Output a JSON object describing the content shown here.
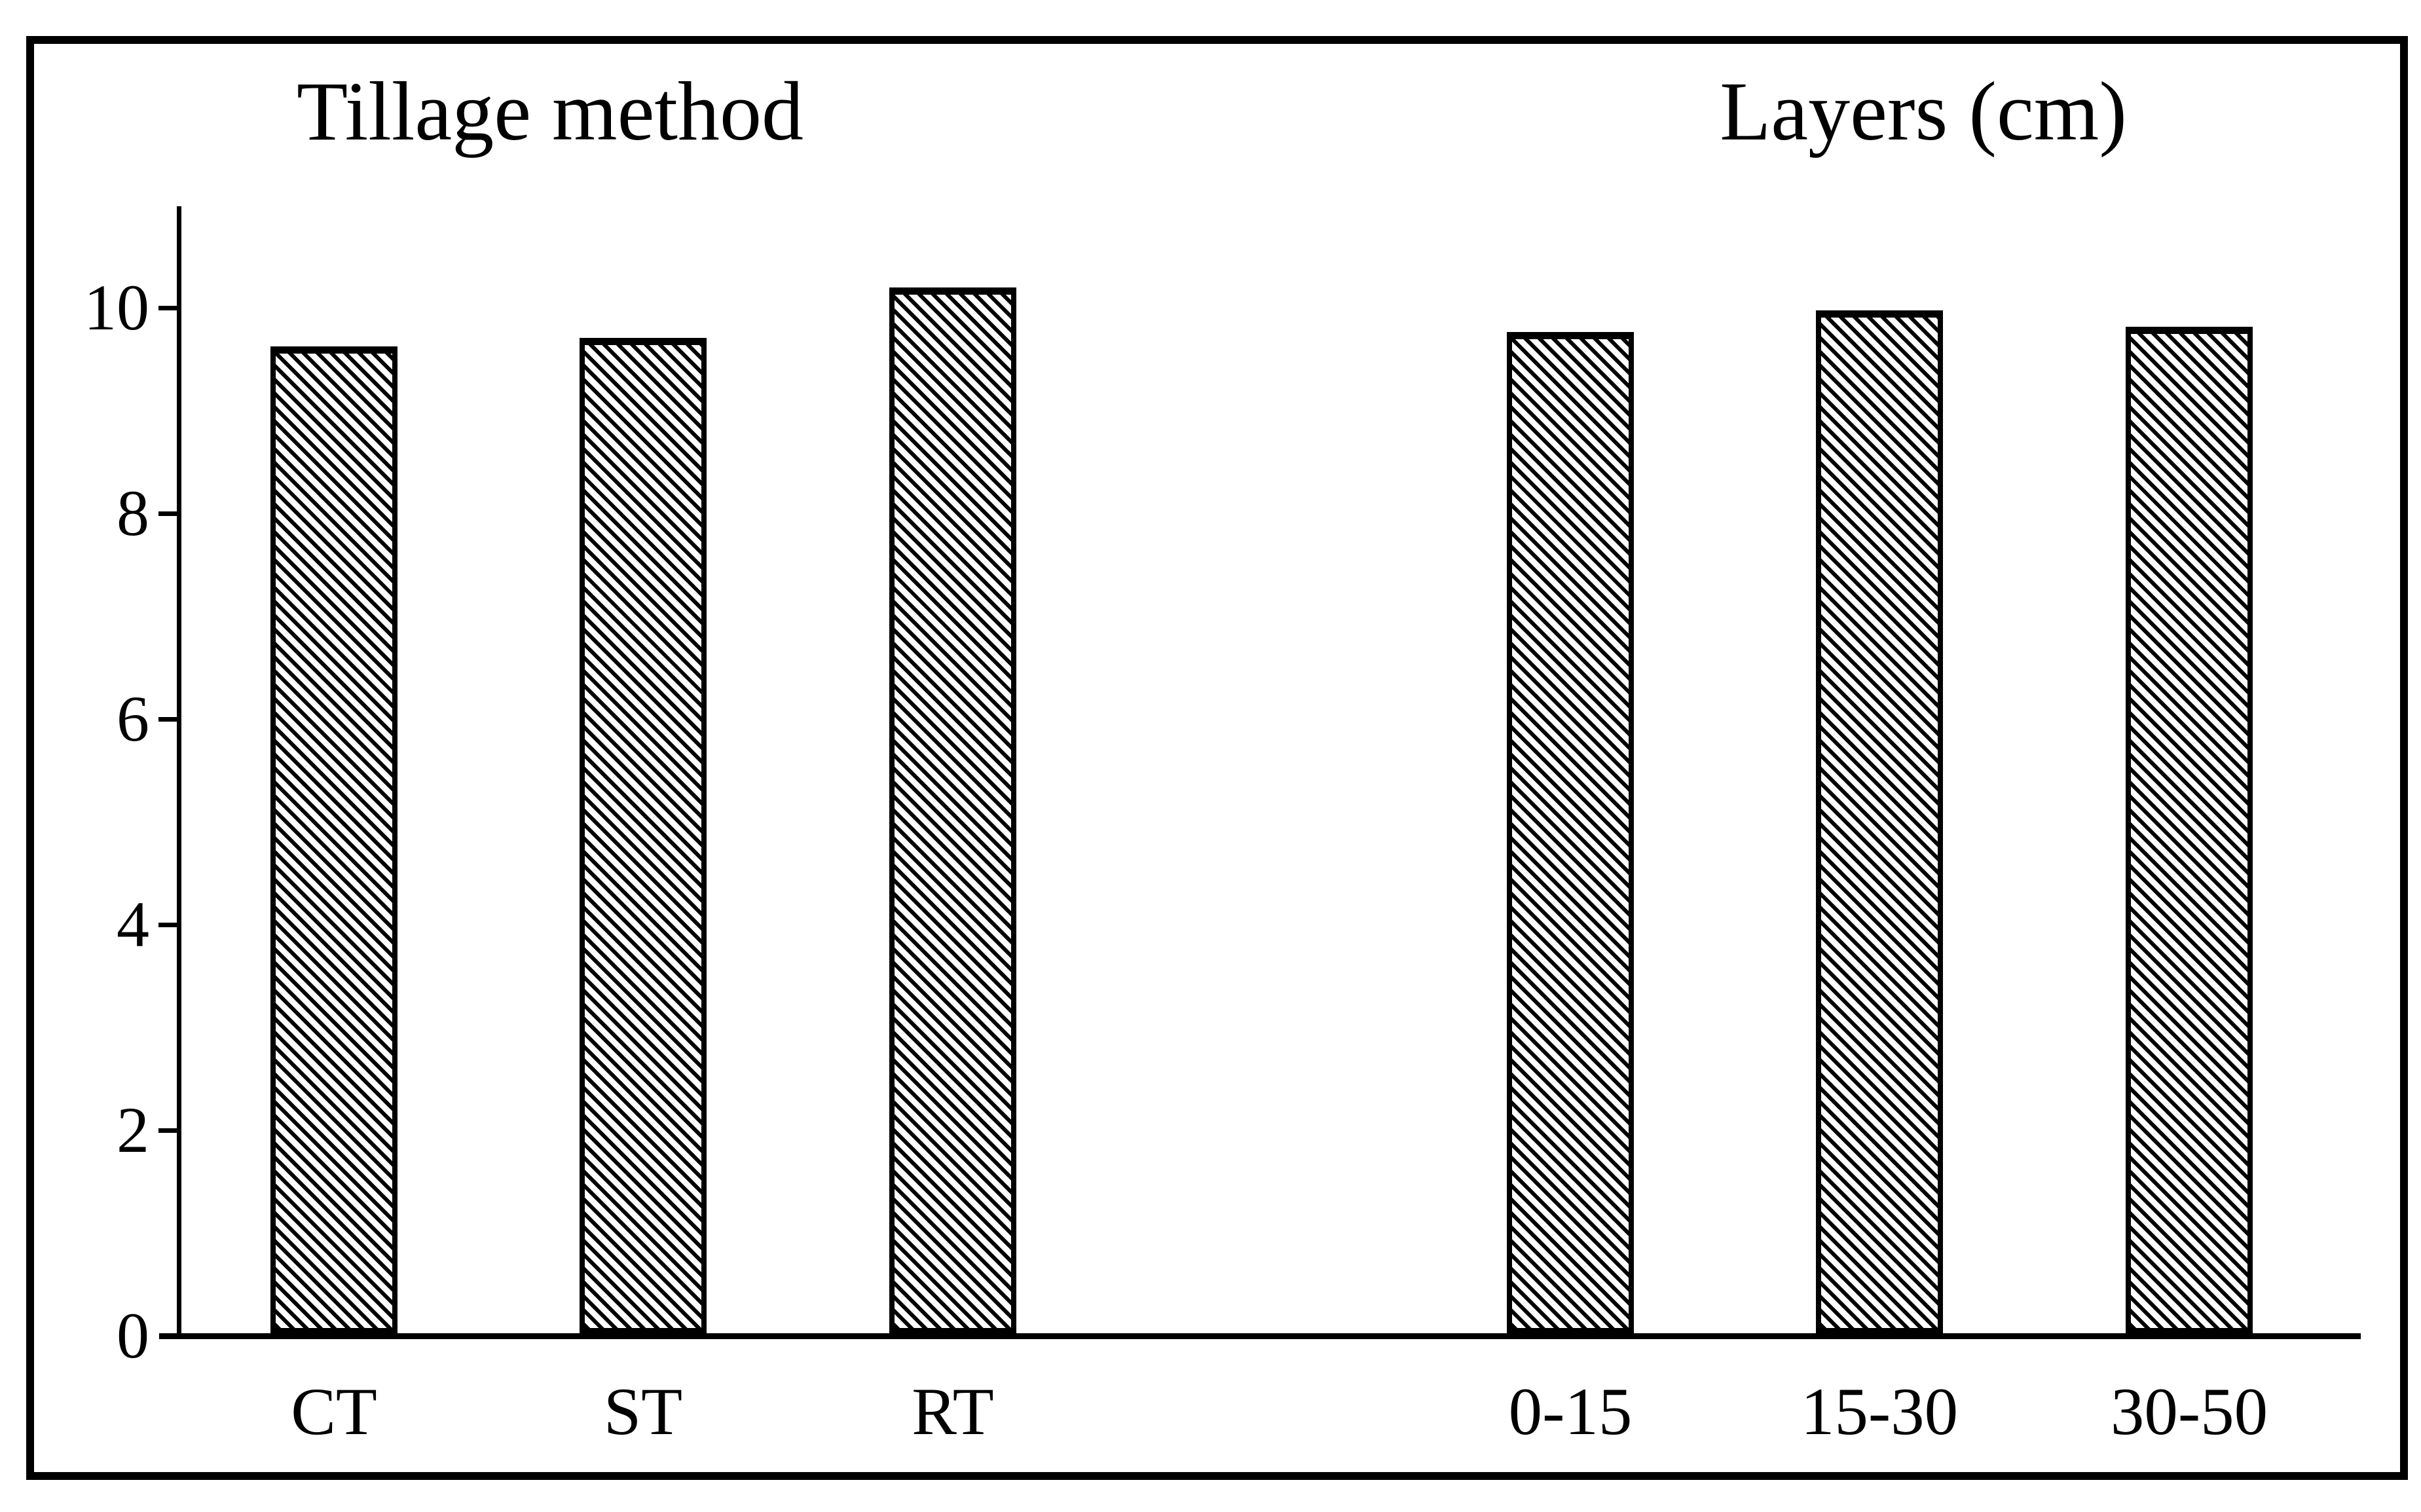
{
  "chart_data": {
    "type": "bar",
    "title": "",
    "groups": [
      {
        "title": "Tillage method",
        "categories": [
          "CT",
          "ST",
          "RT"
        ],
        "values": [
          9.6,
          9.68,
          10.17
        ]
      },
      {
        "title": "Layers (cm)",
        "categories": [
          "0-15",
          "15-30",
          "30-50"
        ],
        "values": [
          9.74,
          9.95,
          9.79
        ]
      }
    ],
    "ylabel": "",
    "xlabel": "",
    "ylim": [
      0,
      11
    ],
    "yticks": [
      0,
      2,
      4,
      6,
      8,
      10
    ],
    "grid": false,
    "legend": "none",
    "bar_fill": "diagonal-hatch",
    "bar_outline_color": "#000000",
    "background_color": "#ffffff"
  }
}
